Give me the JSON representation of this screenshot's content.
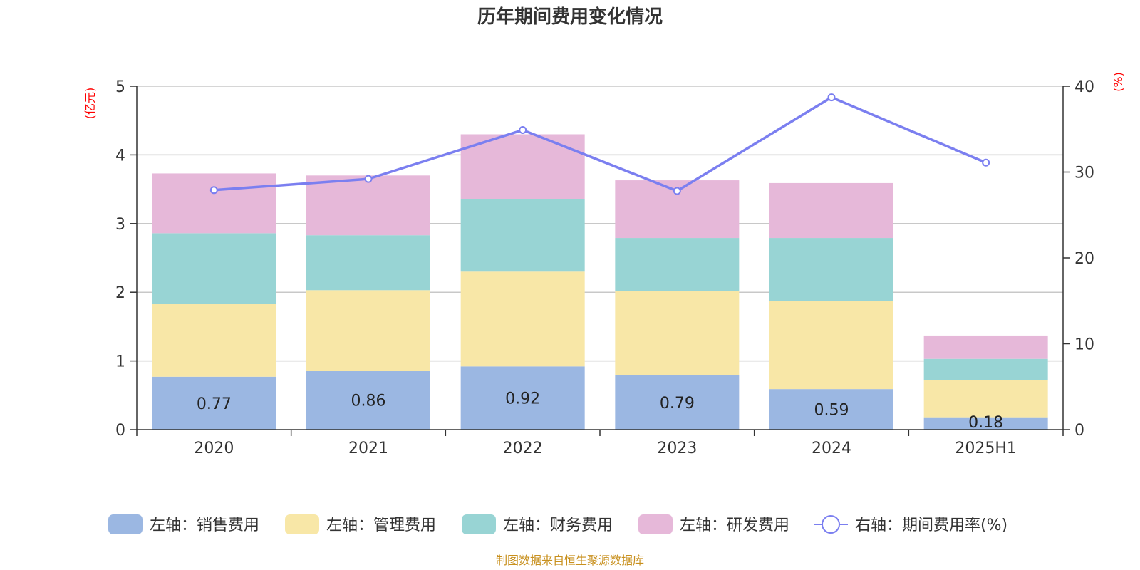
{
  "chart_data": {
    "type": "bar",
    "title": "历年期间费用变化情况",
    "categories": [
      "2020",
      "2021",
      "2022",
      "2023",
      "2024",
      "2025H1"
    ],
    "left_axis": {
      "unit": "(亿元)",
      "ylim": [
        0,
        5
      ],
      "ticks": [
        "0",
        "1",
        "2",
        "3",
        "4",
        "5"
      ]
    },
    "right_axis": {
      "unit": "(%)",
      "ylim": [
        0,
        40
      ],
      "ticks": [
        "0",
        "10",
        "20",
        "30",
        "40"
      ]
    },
    "stacked": true,
    "grid": true,
    "legend_position": "bottom",
    "series": [
      {
        "name": "左轴：销售费用",
        "type": "bar",
        "axis": "left",
        "color": "#9bb7e2",
        "values": [
          0.77,
          0.86,
          0.92,
          0.79,
          0.59,
          0.18
        ],
        "labels": [
          "0.77",
          "0.86",
          "0.92",
          "0.79",
          "0.59",
          "0.18"
        ]
      },
      {
        "name": "左轴：管理费用",
        "type": "bar",
        "axis": "left",
        "color": "#f8e7a7",
        "values": [
          1.06,
          1.17,
          1.38,
          1.23,
          1.28,
          0.54
        ]
      },
      {
        "name": "左轴：财务费用",
        "type": "bar",
        "axis": "left",
        "color": "#98d4d4",
        "values": [
          1.03,
          0.8,
          1.06,
          0.77,
          0.92,
          0.31
        ]
      },
      {
        "name": "左轴：研发费用",
        "type": "bar",
        "axis": "left",
        "color": "#e6b8d9",
        "values": [
          0.87,
          0.87,
          0.94,
          0.84,
          0.8,
          0.34
        ]
      },
      {
        "name": "右轴：期间费用率(%)",
        "type": "line",
        "axis": "right",
        "color": "#7b7ff0",
        "values": [
          27.9,
          29.2,
          34.9,
          27.8,
          38.7,
          31.1
        ]
      }
    ]
  },
  "footer": {
    "source": "制图数据来自恒生聚源数据库"
  }
}
